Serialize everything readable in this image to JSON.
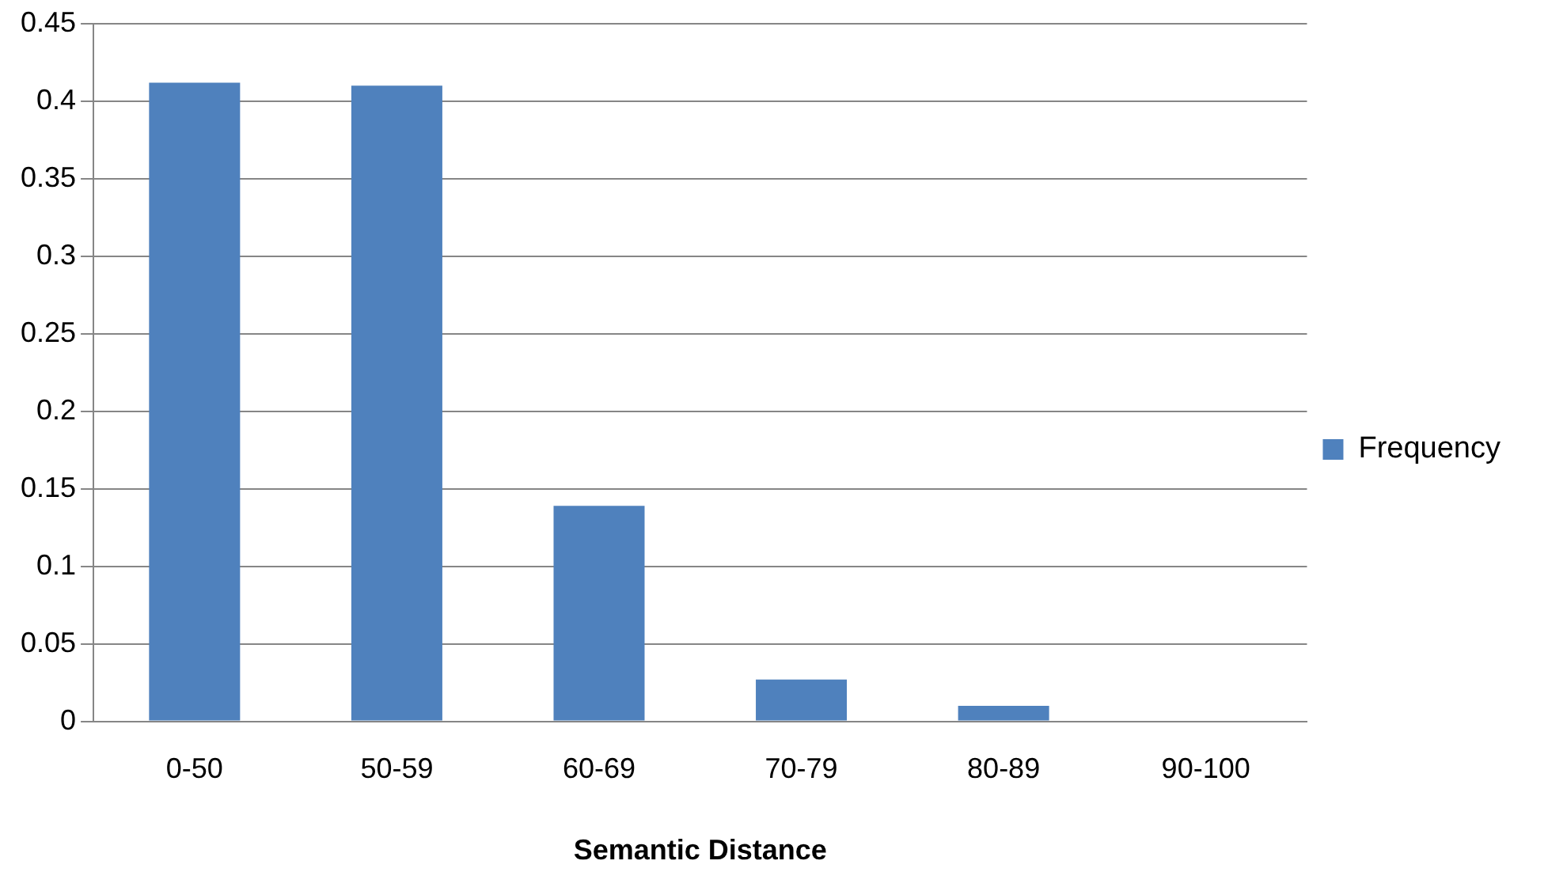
{
  "chart_data": {
    "type": "bar",
    "xlabel": "Semantic Distance",
    "categories": [
      "0-50",
      "50-59",
      "60-69",
      "70-79",
      "80-89",
      "90-100"
    ],
    "series": [
      {
        "name": "Frequency",
        "color": "#4f81bd",
        "values": [
          0.412,
          0.41,
          0.139,
          0.027,
          0.01,
          0
        ]
      }
    ],
    "ylim": [
      0,
      0.45
    ],
    "yticks": [
      0,
      0.05,
      0.1,
      0.15,
      0.2,
      0.25,
      0.3,
      0.35,
      0.4,
      0.45
    ],
    "grid": "y",
    "legend": "right"
  }
}
